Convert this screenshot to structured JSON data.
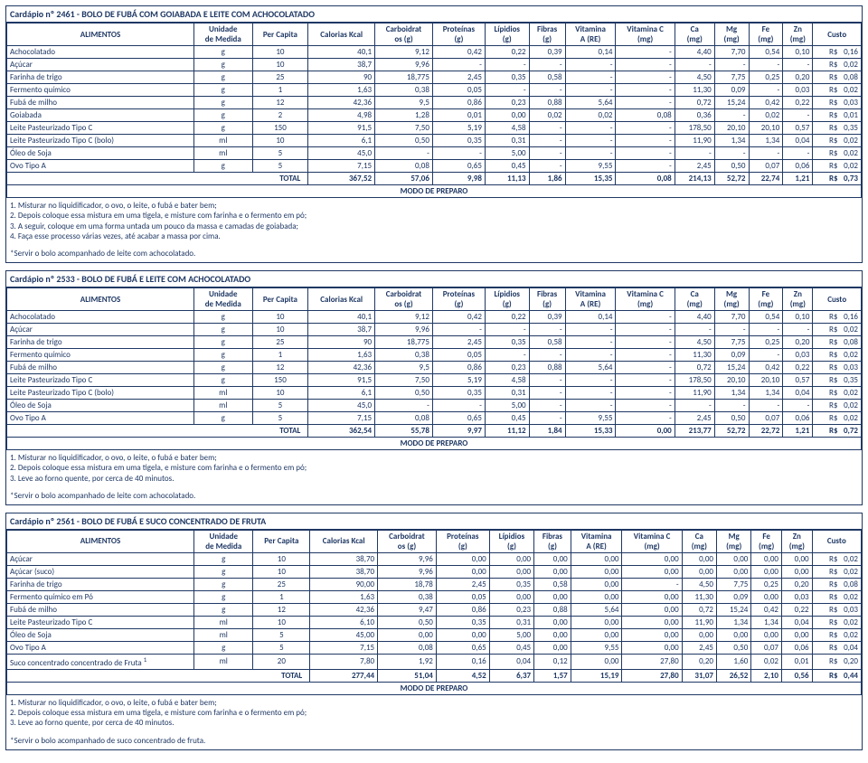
{
  "headers": [
    "ALIMENTOS",
    "Unidade de Medida",
    "Per Capita",
    "Calorias Kcal",
    "Carboidratos (g)",
    "Proteínas (g)",
    "Lípidios (g)",
    "Fibras (g)",
    "Vitamina A (RE)",
    "Vitamina C (mg)",
    "Ca (mg)",
    "Mg (mg)",
    "Fe (mg)",
    "Zn (mg)",
    "Custo"
  ],
  "modo_label": "MODO DE PREPARO",
  "total_label": "TOTAL",
  "cardapios": [
    {
      "title": "Cardápio nº 2461 - BOLO DE FUBÁ COM GOIABADA E LEITE COM ACHOCOLATADO",
      "rows": [
        [
          "Achocolatado",
          "g",
          "10",
          "40,1",
          "9,12",
          "0,42",
          "0,22",
          "0,39",
          "0,14",
          "-",
          "4,40",
          "7,70",
          "0,54",
          "0,10",
          "R$",
          "0,16"
        ],
        [
          "Açúcar",
          "g",
          "10",
          "38,7",
          "9,96",
          "-",
          "-",
          "-",
          "-",
          "-",
          "-",
          "-",
          "-",
          "-",
          "R$",
          "0,02"
        ],
        [
          "Farinha de trigo",
          "g",
          "25",
          "90",
          "18,775",
          "2,45",
          "0,35",
          "0,58",
          "-",
          "-",
          "4,50",
          "7,75",
          "0,25",
          "0,20",
          "R$",
          "0,08"
        ],
        [
          "Fermento químico",
          "g",
          "1",
          "1,63",
          "0,38",
          "0,05",
          "-",
          "-",
          "-",
          "-",
          "11,30",
          "0,09",
          "-",
          "0,03",
          "R$",
          "0,02"
        ],
        [
          "Fubá de milho",
          "g",
          "12",
          "42,36",
          "9,5",
          "0,86",
          "0,23",
          "0,88",
          "5,64",
          "-",
          "0,72",
          "15,24",
          "0,42",
          "0,22",
          "R$",
          "0,03"
        ],
        [
          "Goiabada",
          "g",
          "2",
          "4,98",
          "1,28",
          "0,01",
          "0,00",
          "0,02",
          "0,02",
          "0,08",
          "0,36",
          "-",
          "0,02",
          "-",
          "R$",
          "0,01"
        ],
        [
          "Leite Pasteurizado Tipo C",
          "g",
          "150",
          "91,5",
          "7,50",
          "5,19",
          "4,58",
          "-",
          "-",
          "-",
          "178,50",
          "20,10",
          "20,10",
          "0,57",
          "R$",
          "0,35"
        ],
        [
          "Leite Pasteurizado Tipo C (bolo)",
          "ml",
          "10",
          "6,1",
          "0,50",
          "0,35",
          "0,31",
          "-",
          "-",
          "-",
          "11,90",
          "1,34",
          "1,34",
          "0,04",
          "R$",
          "0,02"
        ],
        [
          "Óleo de Soja",
          "ml",
          "5",
          "45,0",
          "-",
          "-",
          "5,00",
          "-",
          "-",
          "-",
          "-",
          "-",
          "-",
          "-",
          "R$",
          "0,02"
        ],
        [
          "Ovo Tipo A",
          "g",
          "5",
          "7,15",
          "0,08",
          "0,65",
          "0,45",
          "-",
          "9,55",
          "-",
          "2,45",
          "0,50",
          "0,07",
          "0,06",
          "R$",
          "0,02"
        ]
      ],
      "total": [
        "",
        "",
        "367,52",
        "57,06",
        "9,98",
        "11,13",
        "1,86",
        "15,35",
        "0,08",
        "214,13",
        "52,72",
        "22,74",
        "1,21",
        "R$",
        "0,73"
      ],
      "instructions": [
        "1. Misturar no liquidificador, o ovo, o leite, o fubá e bater bem;",
        "2. Depois coloque essa mistura em uma tigela, e misture com farinha e o fermento em pó;",
        "3. A seguir, coloque em uma forma untada um pouco da massa e camadas de goiabada;",
        "4. Faça esse processo várias vezes, até acabar a massa por cima."
      ],
      "servir": "*Servir o bolo acompanhado de leite com achocolatado."
    },
    {
      "title": "Cardápio nº 2533 - BOLO DE FUBÁ E LEITE COM ACHOCOLATADO",
      "rows": [
        [
          "Achocolatado",
          "g",
          "10",
          "40,1",
          "9,12",
          "0,42",
          "0,22",
          "0,39",
          "0,14",
          "-",
          "4,40",
          "7,70",
          "0,54",
          "0,10",
          "R$",
          "0,16"
        ],
        [
          "Açúcar",
          "g",
          "10",
          "38,7",
          "9,96",
          "-",
          "-",
          "-",
          "-",
          "-",
          "-",
          "-",
          "-",
          "-",
          "R$",
          "0,02"
        ],
        [
          "Farinha de trigo",
          "g",
          "25",
          "90",
          "18,775",
          "2,45",
          "0,35",
          "0,58",
          "-",
          "-",
          "4,50",
          "7,75",
          "0,25",
          "0,20",
          "R$",
          "0,08"
        ],
        [
          "Fermento químico",
          "g",
          "1",
          "1,63",
          "0,38",
          "0,05",
          "-",
          "-",
          "-",
          "-",
          "11,30",
          "0,09",
          "-",
          "0,03",
          "R$",
          "0,02"
        ],
        [
          "Fubá de milho",
          "g",
          "12",
          "42,36",
          "9,5",
          "0,86",
          "0,23",
          "0,88",
          "5,64",
          "-",
          "0,72",
          "15,24",
          "0,42",
          "0,22",
          "R$",
          "0,03"
        ],
        [
          "Leite Pasteurizado Tipo C",
          "g",
          "150",
          "91,5",
          "7,50",
          "5,19",
          "4,58",
          "-",
          "-",
          "-",
          "178,50",
          "20,10",
          "20,10",
          "0,57",
          "R$",
          "0,35"
        ],
        [
          "Leite Pasteurizado Tipo C (bolo)",
          "ml",
          "10",
          "6,1",
          "0,50",
          "0,35",
          "0,31",
          "-",
          "-",
          "-",
          "11,90",
          "1,34",
          "1,34",
          "0,04",
          "R$",
          "0,02"
        ],
        [
          "Óleo de Soja",
          "ml",
          "5",
          "45,0",
          "-",
          "-",
          "5,00",
          "-",
          "-",
          "-",
          "-",
          "-",
          "-",
          "-",
          "R$",
          "0,02"
        ],
        [
          "Ovo Tipo A",
          "g",
          "5",
          "7,15",
          "0,08",
          "0,65",
          "0,45",
          "-",
          "9,55",
          "-",
          "2,45",
          "0,50",
          "0,07",
          "0,06",
          "R$",
          "0,02"
        ]
      ],
      "total": [
        "",
        "",
        "362,54",
        "55,78",
        "9,97",
        "11,12",
        "1,84",
        "15,33",
        "0,00",
        "213,77",
        "52,72",
        "22,72",
        "1,21",
        "R$",
        "0,72"
      ],
      "instructions": [
        "1. Misturar no liquidificador, o ovo, o leite, o fubá e bater bem;",
        "2. Depois coloque essa mistura em uma tigela, e misture com farinha e o fermento em pó;",
        "3. Leve ao forno quente, por cerca de 40 minutos."
      ],
      "servir": "*Servir o bolo acompanhado de leite com achocolatado."
    },
    {
      "title": "Cardápio nº 2561 - BOLO DE FUBÁ E SUCO CONCENTRADO DE FRUTA",
      "rows": [
        [
          "Açúcar",
          "g",
          "10",
          "38,70",
          "9,96",
          "0,00",
          "0,00",
          "0,00",
          "0,00",
          "0,00",
          "0,00",
          "0,00",
          "0,00",
          "0,00",
          "R$",
          "0,02"
        ],
        [
          "Açúcar (suco)",
          "g",
          "10",
          "38,70",
          "9,96",
          "0,00",
          "0,00",
          "0,00",
          "0,00",
          "0,00",
          "0,00",
          "0,00",
          "0,00",
          "0,00",
          "R$",
          "0,02"
        ],
        [
          "Farinha de trigo",
          "g",
          "25",
          "90,00",
          "18,78",
          "2,45",
          "0,35",
          "0,58",
          "0,00",
          "-",
          "4,50",
          "7,75",
          "0,25",
          "0,20",
          "R$",
          "0,08"
        ],
        [
          "Fermento químico em Pó",
          "g",
          "1",
          "1,63",
          "0,38",
          "0,05",
          "0,00",
          "0,00",
          "0,00",
          "0,00",
          "11,30",
          "0,09",
          "0,00",
          "0,03",
          "R$",
          "0,02"
        ],
        [
          "Fubá de milho",
          "g",
          "12",
          "42,36",
          "9,47",
          "0,86",
          "0,23",
          "0,88",
          "5,64",
          "0,00",
          "0,72",
          "15,24",
          "0,42",
          "0,22",
          "R$",
          "0,03"
        ],
        [
          "Leite Pasteurizado Tipo C",
          "ml",
          "10",
          "6,10",
          "0,50",
          "0,35",
          "0,31",
          "0,00",
          "0,00",
          "0,00",
          "11,90",
          "1,34",
          "1,34",
          "0,04",
          "R$",
          "0,02"
        ],
        [
          "Óleo de Soja",
          "ml",
          "5",
          "45,00",
          "0,00",
          "0,00",
          "5,00",
          "0,00",
          "0,00",
          "0,00",
          "0,00",
          "0,00",
          "0,00",
          "0,00",
          "R$",
          "0,02"
        ],
        [
          "Ovo Tipo A",
          "g",
          "5",
          "7,15",
          "0,08",
          "0,65",
          "0,45",
          "0,00",
          "9,55",
          "0,00",
          "2,45",
          "0,50",
          "0,07",
          "0,06",
          "R$",
          "0,04"
        ],
        [
          "Suco concentrado concentrado de Fruta <sup>1</sup>",
          "ml",
          "20",
          "7,80",
          "1,92",
          "0,16",
          "0,04",
          "0,12",
          "0,00",
          "27,80",
          "0,20",
          "1,60",
          "0,02",
          "0,01",
          "R$",
          "0,20"
        ]
      ],
      "total": [
        "",
        "",
        "277,44",
        "51,04",
        "4,52",
        "6,37",
        "1,57",
        "15,19",
        "27,80",
        "31,07",
        "26,52",
        "2,10",
        "0,56",
        "R$",
        "0,44"
      ],
      "instructions": [
        "1. Misturar no liquidificador, o ovo, o leite, o fubá e bater bem;",
        "2. Depois coloque essa mistura em uma tigela, e misture com farinha e o fermento em pó;",
        "3. Leve ao forno quente, por cerca de 40 minutos."
      ],
      "servir": "*Servir o bolo acompanhado de suco concentrado de fruta."
    }
  ]
}
